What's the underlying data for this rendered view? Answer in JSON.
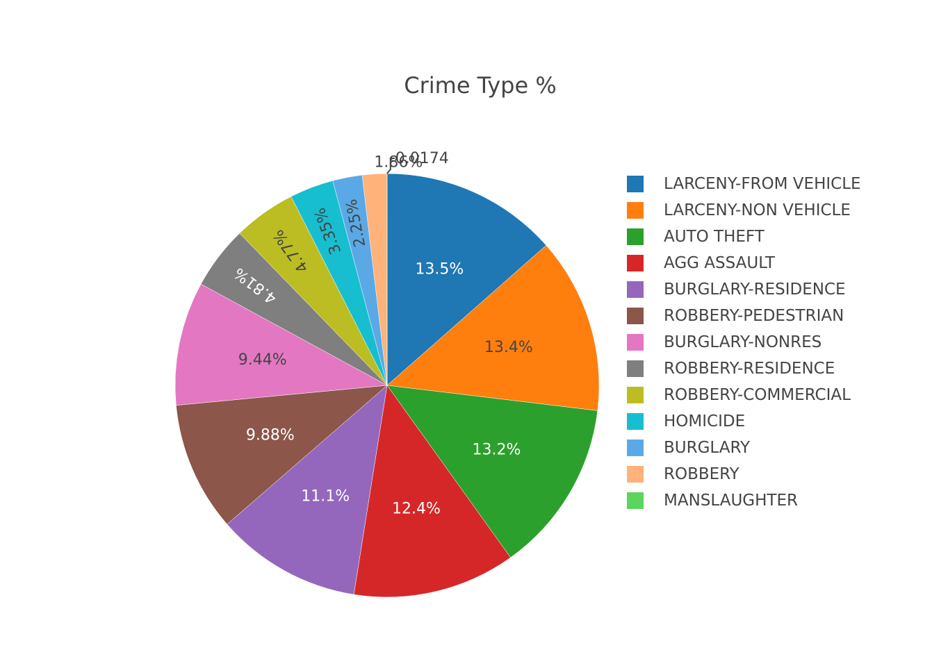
{
  "chart_data": {
    "type": "pie",
    "title": "Crime Type %",
    "legend_position": "right",
    "slices": [
      {
        "label": "LARCENY-FROM VEHICLE",
        "value": 13.5,
        "text": "13.5%",
        "color": "#1f77b4",
        "text_color": "#ffffff"
      },
      {
        "label": "LARCENY-NON VEHICLE",
        "value": 13.4,
        "text": "13.4%",
        "color": "#ff7f0e",
        "text_color": "#444444"
      },
      {
        "label": "AUTO THEFT",
        "value": 13.2,
        "text": "13.2%",
        "color": "#2ca02c",
        "text_color": "#ffffff"
      },
      {
        "label": "AGG ASSAULT",
        "value": 12.4,
        "text": "12.4%",
        "color": "#d62728",
        "text_color": "#ffffff"
      },
      {
        "label": "BURGLARY-RESIDENCE",
        "value": 11.1,
        "text": "11.1%",
        "color": "#9467bd",
        "text_color": "#ffffff"
      },
      {
        "label": "ROBBERY-PEDESTRIAN",
        "value": 9.88,
        "text": "9.88%",
        "color": "#8c564b",
        "text_color": "#ffffff"
      },
      {
        "label": "BURGLARY-NONRES",
        "value": 9.44,
        "text": "9.44%",
        "color": "#e377c2",
        "text_color": "#444444"
      },
      {
        "label": "ROBBERY-RESIDENCE",
        "value": 4.81,
        "text": "4.81%",
        "color": "#7f7f7f",
        "text_color": "#ffffff"
      },
      {
        "label": "ROBBERY-COMMERCIAL",
        "value": 4.77,
        "text": "4.77%",
        "color": "#bcbd22",
        "text_color": "#444444"
      },
      {
        "label": "HOMICIDE",
        "value": 3.35,
        "text": "3.35%",
        "color": "#17becf",
        "text_color": "#444444"
      },
      {
        "label": "BURGLARY",
        "value": 2.25,
        "text": "2.25%",
        "color": "#5aa9e6",
        "text_color": "#444444"
      },
      {
        "label": "ROBBERY",
        "value": 1.86,
        "text": "1.86%",
        "color": "#ffb27a",
        "text_color": "#444444"
      },
      {
        "label": "MANSLAUGHTER",
        "value": 0.0174,
        "text": "0.0174",
        "color": "#5bd55b",
        "text_color": "#444444"
      }
    ]
  }
}
